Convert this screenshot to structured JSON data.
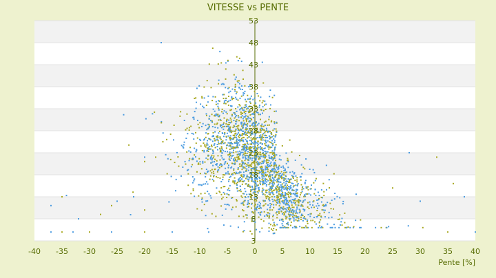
{
  "chart_data": {
    "type": "scatter",
    "title": "VITESSE vs PENTE",
    "xlabel": "Pente [%]",
    "ylabel": "",
    "xlim": [
      -40,
      40
    ],
    "ylim": [
      3,
      53
    ],
    "x_ticks": [
      -40,
      -35,
      -30,
      -25,
      -20,
      -15,
      -10,
      -5,
      0,
      5,
      10,
      15,
      20,
      25,
      30,
      35,
      40
    ],
    "y_ticks": [
      3,
      8,
      13,
      18,
      23,
      28,
      33,
      38,
      43,
      48,
      53
    ],
    "grid": "horizontal alternating bands",
    "legend": "none",
    "series": [
      {
        "color": "#4a9be0",
        "marker": "dot"
      },
      {
        "color": "#a8a820",
        "marker": "dot"
      }
    ],
    "distribution_note": "dense cloud of several thousand points; values are estimated",
    "outliers": [
      [
        -37,
        5
      ],
      [
        -35,
        5
      ],
      [
        -33,
        5
      ],
      [
        -30,
        5
      ],
      [
        -26,
        5
      ],
      [
        -20,
        5
      ],
      [
        -15,
        5
      ],
      [
        35,
        5
      ],
      [
        40,
        5
      ],
      [
        -35,
        13
      ],
      [
        -37,
        11
      ],
      [
        -26,
        11
      ],
      [
        -22,
        13
      ],
      [
        -20,
        10
      ],
      [
        -32,
        8
      ],
      [
        -28,
        9
      ],
      [
        -25,
        12
      ],
      [
        36,
        16
      ],
      [
        38,
        13
      ],
      [
        33,
        22
      ],
      [
        28,
        23
      ],
      [
        25,
        15
      ],
      [
        30,
        12
      ],
      [
        -18,
        22
      ],
      [
        -20,
        22
      ],
      [
        -16,
        26
      ],
      [
        -17,
        48
      ],
      [
        -20,
        21
      ]
    ]
  }
}
